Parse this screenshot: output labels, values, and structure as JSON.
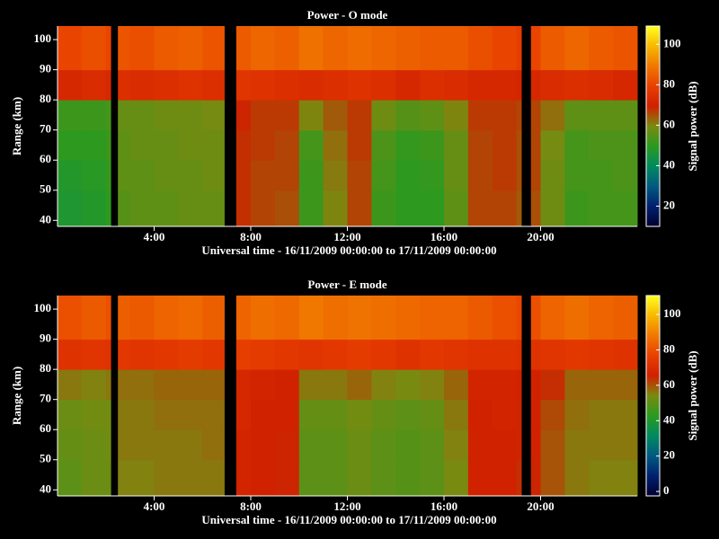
{
  "chart_data": [
    {
      "type": "heatmap",
      "title": "Power - O mode",
      "xlabel": "Universal time - 16/11/2009 00:00:00 to 17/11/2009 00:00:00",
      "ylabel": "Range (km)",
      "colorbar_label": "Signal power (dB)",
      "x_bins": [
        0,
        1,
        2,
        2.2,
        2.5,
        3,
        4,
        5,
        6,
        6.9,
        7.4,
        8,
        9,
        10,
        11,
        12,
        13,
        14,
        15,
        16,
        17,
        18,
        19,
        19.2,
        19.6,
        20,
        21,
        22,
        23,
        24
      ],
      "y_bins": [
        38,
        50,
        60,
        70,
        80,
        90,
        104.5
      ],
      "values": [
        [
          47,
          48,
          50,
          null,
          55,
          56,
          56,
          57,
          57,
          null,
          68,
          66,
          65,
          52,
          60,
          66,
          52,
          50,
          50,
          56,
          66,
          66,
          64,
          null,
          65,
          58,
          52,
          53,
          53
        ],
        [
          48,
          49,
          51,
          null,
          56,
          56,
          57,
          57,
          58,
          null,
          68,
          66,
          66,
          52,
          61,
          66,
          53,
          50,
          51,
          57,
          66,
          67,
          65,
          null,
          66,
          58,
          53,
          53,
          54
        ],
        [
          50,
          50,
          52,
          null,
          56,
          57,
          57,
          58,
          58,
          null,
          68,
          67,
          66,
          53,
          62,
          67,
          54,
          51,
          52,
          57,
          66,
          67,
          65,
          null,
          66,
          59,
          53,
          54,
          54
        ],
        [
          52,
          52,
          53,
          null,
          57,
          57,
          58,
          58,
          59,
          null,
          69,
          67,
          67,
          60,
          64,
          67,
          58,
          55,
          56,
          60,
          67,
          67,
          66,
          null,
          66,
          62,
          56,
          56,
          56
        ],
        [
          72,
          73,
          72,
          null,
          74,
          73,
          74,
          75,
          74,
          null,
          76,
          75,
          74,
          73,
          74,
          75,
          74,
          72,
          74,
          73,
          72,
          72,
          71,
          null,
          72,
          73,
          74,
          73,
          72
        ],
        [
          80,
          82,
          80,
          null,
          83,
          82,
          84,
          85,
          83,
          null,
          84,
          86,
          85,
          88,
          86,
          87,
          86,
          85,
          84,
          84,
          82,
          80,
          78,
          null,
          80,
          84,
          86,
          84,
          83
        ]
      ],
      "xlim": [
        0,
        24
      ],
      "xticks": [
        {
          "value": 4,
          "label": "4:00"
        },
        {
          "value": 8,
          "label": "8:00"
        },
        {
          "value": 12,
          "label": "12:00"
        },
        {
          "value": 16,
          "label": "16:00"
        },
        {
          "value": 20,
          "label": "20:00"
        }
      ],
      "ylim": [
        38,
        104.5
      ],
      "yticks": [
        40,
        50,
        60,
        70,
        80,
        90,
        100
      ],
      "clim": [
        10,
        109
      ],
      "cticks": [
        20,
        40,
        60,
        80,
        100
      ],
      "colorscale": [
        "#000030",
        "#002070",
        "#005a80",
        "#008a60",
        "#2a9a20",
        "#7a8a10",
        "#d02000",
        "#e84000",
        "#f07800",
        "#f8b800",
        "#ffff20"
      ]
    },
    {
      "type": "heatmap",
      "title": "Power - E mode",
      "xlabel": "Universal time - 16/11/2009 00:00:00 to 17/11/2009 00:00:00",
      "ylabel": "Range (km)",
      "colorbar_label": "Signal power (dB)",
      "x_bins": [
        0,
        1,
        2,
        2.2,
        2.5,
        3,
        4,
        5,
        6,
        6.9,
        7.4,
        8,
        9,
        10,
        11,
        12,
        13,
        14,
        15,
        16,
        17,
        18,
        19,
        19.2,
        19.6,
        20,
        21,
        22,
        23,
        24
      ],
      "y_bins": [
        38,
        50,
        60,
        70,
        80,
        90,
        104.5
      ],
      "values": [
        [
          50,
          52,
          52,
          null,
          55,
          55,
          56,
          56,
          56,
          null,
          67,
          66,
          65,
          50,
          50,
          52,
          50,
          49,
          50,
          54,
          66,
          66,
          64,
          null,
          65,
          60,
          56,
          55,
          55
        ],
        [
          51,
          52,
          53,
          null,
          56,
          56,
          56,
          56,
          57,
          null,
          67,
          66,
          65,
          50,
          50,
          52,
          50,
          49,
          50,
          55,
          66,
          66,
          65,
          null,
          66,
          60,
          56,
          56,
          56
        ],
        [
          52,
          53,
          53,
          null,
          56,
          56,
          57,
          57,
          57,
          null,
          68,
          66,
          66,
          51,
          51,
          53,
          51,
          50,
          51,
          56,
          66,
          67,
          65,
          null,
          66,
          61,
          57,
          56,
          56
        ],
        [
          56,
          55,
          56,
          null,
          57,
          57,
          58,
          58,
          58,
          null,
          68,
          67,
          66,
          56,
          56,
          58,
          55,
          54,
          55,
          58,
          67,
          67,
          66,
          null,
          66,
          64,
          58,
          58,
          58
        ],
        [
          72,
          73,
          72,
          null,
          74,
          73,
          74,
          75,
          74,
          null,
          76,
          75,
          74,
          73,
          74,
          75,
          74,
          72,
          74,
          73,
          72,
          72,
          71,
          null,
          72,
          73,
          74,
          73,
          72
        ],
        [
          80,
          82,
          80,
          null,
          83,
          82,
          84,
          85,
          83,
          null,
          84,
          86,
          85,
          88,
          86,
          87,
          86,
          85,
          84,
          84,
          82,
          80,
          78,
          null,
          80,
          84,
          86,
          84,
          83
        ]
      ],
      "xlim": [
        0,
        24
      ],
      "xticks": [
        {
          "value": 4,
          "label": "4:00"
        },
        {
          "value": 8,
          "label": "8:00"
        },
        {
          "value": 12,
          "label": "12:00"
        },
        {
          "value": 16,
          "label": "16:00"
        },
        {
          "value": 20,
          "label": "20:00"
        }
      ],
      "ylim": [
        38,
        104.5
      ],
      "yticks": [
        40,
        50,
        60,
        70,
        80,
        90,
        100
      ],
      "clim": [
        -2.5,
        110.7
      ],
      "cticks": [
        0,
        20,
        40,
        60,
        80,
        100
      ],
      "colorscale": [
        "#000030",
        "#002070",
        "#005a80",
        "#008a60",
        "#2a9a20",
        "#7a8a10",
        "#d02000",
        "#e84000",
        "#f07800",
        "#f8b800",
        "#ffff20"
      ]
    }
  ]
}
